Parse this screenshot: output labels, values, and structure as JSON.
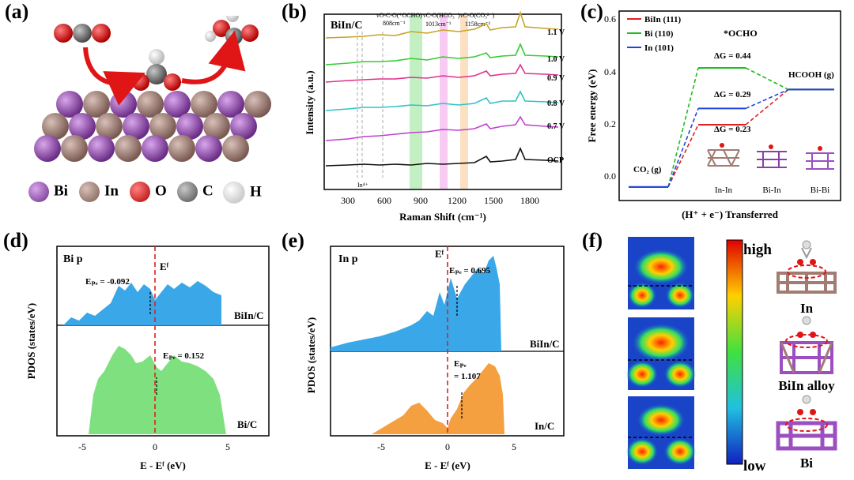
{
  "figure": {
    "panels": {
      "a": "(a)",
      "b": "(b)",
      "c": "(c)",
      "d": "(d)",
      "e": "(e)",
      "f": "(f)"
    },
    "a": {
      "legend": [
        {
          "label": "Bi",
          "color": "#8a3fa8"
        },
        {
          "label": "In",
          "color": "#a27c72"
        },
        {
          "label": "O",
          "color": "#e01515"
        },
        {
          "label": "C",
          "color": "#707070"
        },
        {
          "label": "H",
          "color": "#f2f2f2"
        }
      ]
    },
    "b": {
      "sample": "BiIn/C",
      "ylabel": "Intensity (a.u.)",
      "xlabel": "Raman Shift (cm⁻¹)",
      "xticks": [
        "300",
        "600",
        "900",
        "1200",
        "1500",
        "1800"
      ],
      "peak_labels": [
        "νO-C-O(*OCHO)",
        "808cm⁻¹",
        "νC-O(HCO₃⁻)",
        "1013cm⁻¹",
        "νC-O(CO₃²⁻)",
        "1158cm⁻¹",
        "In⁴⁺"
      ],
      "curves": [
        {
          "label": "1.1 V",
          "color": "#c9a227"
        },
        {
          "label": "1.0 V",
          "color": "#33cc33"
        },
        {
          "label": "0.9 V",
          "color": "#e0308a"
        },
        {
          "label": "0.8 V",
          "color": "#2ec4c4"
        },
        {
          "label": "0.7 V",
          "color": "#c040d0"
        },
        {
          "label": "OCP",
          "color": "#111111"
        }
      ]
    },
    "c": {
      "ylabel": "Free energy (eV)",
      "xlabel": "(H⁺ + e⁻) Transferred",
      "yticks": [
        "0.0",
        "0.2",
        "0.4",
        "0.6"
      ],
      "legend": [
        {
          "label": "BiIn (111)",
          "color": "#e02020"
        },
        {
          "label": "Bi (110)",
          "color": "#22bb22"
        },
        {
          "label": "In (101)",
          "color": "#2244dd"
        }
      ],
      "state_labels": {
        "co2": "CO₂ (g)",
        "ocho": "*OCHO",
        "hcooh": "HCOOH (g)"
      },
      "dg_labels": [
        "ΔG = 0.44",
        "ΔG = 0.29",
        "ΔG = 0.23"
      ],
      "structure_labels": [
        "In-In",
        "Bi-In",
        "Bi-Bi"
      ],
      "chart_data": {
        "type": "line",
        "x": [
          "CO₂ (g)",
          "*OCHO",
          "HCOOH (g)"
        ],
        "series": [
          {
            "name": "BiIn (111)",
            "values": [
              0.0,
              0.23,
              0.36
            ]
          },
          {
            "name": "Bi (110)",
            "values": [
              0.0,
              0.44,
              0.36
            ]
          },
          {
            "name": "In (101)",
            "values": [
              0.0,
              0.29,
              0.36
            ]
          }
        ],
        "ylim": [
          -0.05,
          0.65
        ]
      }
    },
    "d": {
      "orbital": "Bi p",
      "ylabel": "PDOS (states/eV)",
      "xlabel": "E - Eᶠ (eV)",
      "xticks": [
        "-5",
        "0",
        "5"
      ],
      "ef": "Eᶠ",
      "top": {
        "name": "BiIn/C",
        "epc": "Eₚₑ = -0.092",
        "color": "#3aa8e8"
      },
      "bottom": {
        "name": "Bi/C",
        "epc": "Eₚₑ = 0.152",
        "color": "#7ee07e"
      }
    },
    "e": {
      "orbital": "In p",
      "ylabel": "PDOS (states/eV)",
      "xlabel": "E - Eᶠ (eV)",
      "xticks": [
        "-5",
        "0",
        "5"
      ],
      "ef": "Eᶠ",
      "top": {
        "name": "BiIn/C",
        "epc": "Eₚₑ = 0.695",
        "color": "#3aa8e8"
      },
      "bottom": {
        "name": "In/C",
        "epc_a": "Eₚₑ",
        "epc_b": "= 1.107",
        "color": "#f5a040"
      }
    },
    "f": {
      "scale_high": "high",
      "scale_low": "low",
      "structure_labels": [
        "In",
        "BiIn alloy",
        "Bi"
      ]
    }
  }
}
